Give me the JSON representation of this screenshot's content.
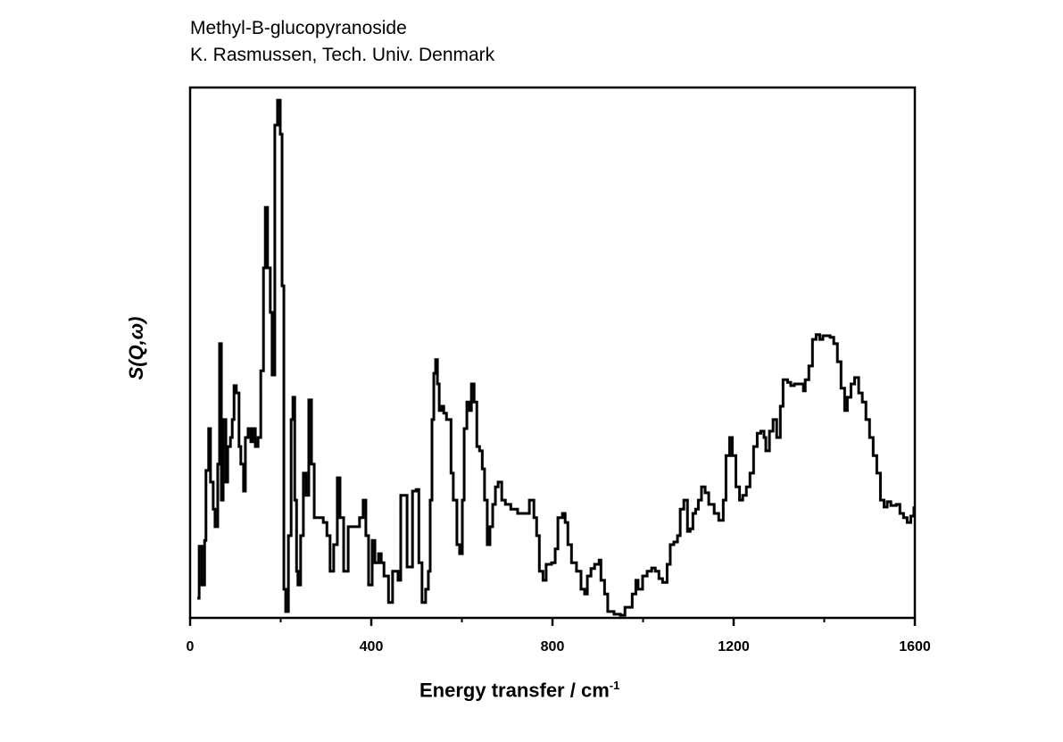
{
  "chart_data": {
    "type": "line",
    "title_lines": [
      "Methyl-B-glucopyranoside",
      "K. Rasmussen, Tech. Univ. Denmark"
    ],
    "xlabel": "Energy transfer / cm",
    "xlabel_superscript": "-1",
    "ylabel": "S(Q,ω)",
    "xlim": [
      0,
      1600
    ],
    "ylim": [
      0,
      100
    ],
    "xticks": [
      "0",
      "400",
      "800",
      "1200",
      "1600"
    ],
    "x_minor_ticks": [
      200,
      600,
      1000,
      1400
    ],
    "grid": false,
    "line_color": "#000000",
    "series": [
      {
        "name": "S(Q,ω)",
        "x": [
          16,
          20,
          26,
          32,
          35,
          41,
          45,
          51,
          55,
          61,
          65,
          69,
          73,
          79,
          83,
          89,
          93,
          97,
          102,
          108,
          112,
          118,
          122,
          128,
          134,
          138,
          144,
          150,
          156,
          162,
          166,
          171,
          177,
          181,
          187,
          193,
          199,
          203,
          207,
          211,
          217,
          223,
          227,
          231,
          235,
          238,
          244,
          250,
          256,
          262,
          268,
          274,
          284,
          294,
          302,
          309,
          317,
          325,
          331,
          339,
          349,
          363,
          374,
          382,
          388,
          394,
          402,
          408,
          416,
          422,
          428,
          438,
          447,
          459,
          465,
          475,
          479,
          487,
          491,
          499,
          505,
          512,
          520,
          526,
          530,
          534,
          538,
          542,
          546,
          550,
          556,
          560,
          566,
          576,
          581,
          589,
          595,
          601,
          605,
          611,
          617,
          621,
          627,
          633,
          639,
          645,
          650,
          656,
          662,
          668,
          674,
          680,
          688,
          696,
          708,
          723,
          739,
          749,
          759,
          765,
          771,
          779,
          786,
          798,
          806,
          812,
          822,
          828,
          834,
          842,
          853,
          863,
          871,
          877,
          885,
          893,
          903,
          907,
          915,
          922,
          936,
          950,
          960,
          968,
          976,
          984,
          989,
          999,
          1009,
          1019,
          1027,
          1035,
          1043,
          1053,
          1060,
          1068,
          1076,
          1082,
          1090,
          1098,
          1104,
          1110,
          1116,
          1122,
          1129,
          1137,
          1145,
          1157,
          1167,
          1177,
          1183,
          1191,
          1197,
          1205,
          1213,
          1220,
          1228,
          1236,
          1244,
          1252,
          1260,
          1267,
          1271,
          1279,
          1287,
          1295,
          1303,
          1309,
          1319,
          1326,
          1334,
          1344,
          1354,
          1358,
          1366,
          1374,
          1382,
          1390,
          1397,
          1405,
          1413,
          1421,
          1429,
          1437,
          1445,
          1451,
          1459,
          1467,
          1476,
          1484,
          1492,
          1500,
          1508,
          1516,
          1524,
          1532,
          1539,
          1547,
          1559,
          1567,
          1575,
          1583,
          1591,
          1598
        ],
        "y": [
          3.7,
          13.5,
          6.2,
          14.6,
          27.8,
          35.7,
          25.6,
          20.5,
          17.2,
          29.0,
          51.7,
          22.2,
          37.4,
          25.6,
          32.3,
          34.0,
          37.4,
          43.8,
          42.4,
          32.3,
          29.0,
          23.9,
          34.0,
          35.7,
          33.2,
          35.7,
          32.3,
          34.0,
          46.6,
          66.0,
          77.4,
          66.0,
          57.6,
          45.8,
          92.9,
          97.6,
          91.2,
          62.6,
          5.4,
          1.2,
          15.5,
          37.4,
          41.6,
          22.2,
          8.8,
          6.2,
          15.5,
          27.3,
          23.1,
          41.1,
          29.0,
          18.9,
          18.9,
          18.0,
          15.5,
          8.8,
          13.8,
          26.4,
          18.9,
          8.8,
          17.2,
          17.2,
          18.9,
          22.2,
          15.5,
          6.2,
          14.6,
          10.4,
          12.1,
          10.4,
          7.9,
          2.9,
          8.8,
          7.1,
          23.1,
          23.1,
          9.6,
          9.6,
          23.9,
          24.2,
          10.4,
          2.9,
          5.4,
          8.8,
          22.2,
          37.4,
          46.1,
          48.7,
          44.1,
          39.1,
          39.9,
          38.6,
          37.4,
          27.3,
          22.2,
          13.8,
          12.1,
          22.2,
          35.7,
          40.7,
          39.1,
          44.1,
          40.7,
          32.3,
          31.5,
          28.1,
          22.2,
          13.8,
          17.2,
          21.4,
          24.7,
          25.6,
          22.2,
          21.4,
          20.5,
          19.7,
          19.7,
          22.2,
          18.9,
          15.5,
          8.8,
          7.1,
          10.1,
          10.4,
          13.0,
          18.9,
          19.7,
          18.0,
          13.8,
          10.4,
          8.8,
          5.4,
          4.5,
          7.9,
          9.3,
          10.1,
          10.9,
          7.1,
          4.5,
          1.2,
          0.7,
          0.5,
          2.0,
          2.0,
          4.5,
          7.1,
          5.4,
          7.9,
          8.8,
          9.4,
          8.8,
          7.4,
          6.7,
          10.1,
          13.8,
          14.3,
          15.5,
          20.5,
          22.2,
          16.3,
          16.8,
          19.7,
          20.5,
          22.2,
          24.7,
          23.6,
          21.4,
          19.7,
          18.4,
          22.2,
          30.6,
          34.0,
          30.6,
          24.7,
          22.2,
          23.1,
          24.7,
          27.3,
          32.3,
          34.8,
          35.2,
          34.0,
          31.5,
          35.2,
          37.4,
          34.0,
          39.9,
          44.9,
          44.4,
          43.8,
          44.1,
          44.1,
          42.8,
          44.9,
          47.5,
          52.5,
          53.4,
          52.5,
          53.2,
          53.2,
          52.9,
          51.7,
          48.3,
          43.3,
          39.1,
          41.6,
          44.1,
          45.3,
          42.4,
          40.7,
          37.4,
          34.0,
          30.6,
          27.3,
          22.2,
          20.9,
          21.9,
          21.2,
          21.4,
          19.7,
          18.9,
          18.0,
          19.2,
          21.0
        ]
      }
    ]
  }
}
